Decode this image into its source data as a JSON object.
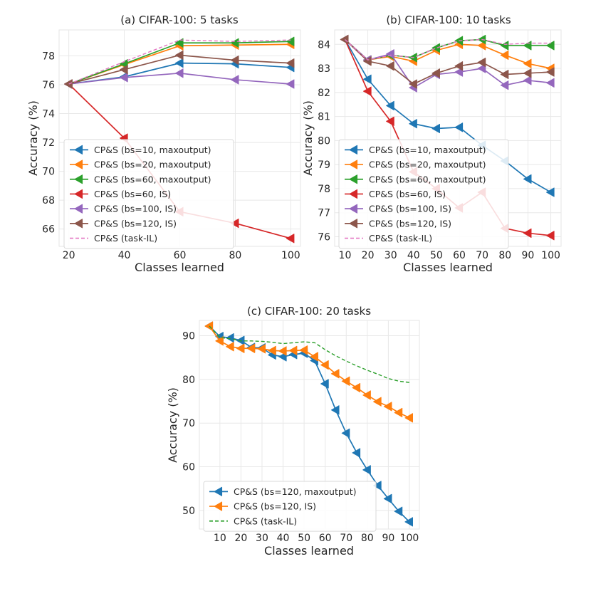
{
  "chart_data": [
    {
      "id": "a",
      "type": "line",
      "title": "(a) CIFAR-100: 5 tasks",
      "xlabel": "Classes learned",
      "ylabel": "Accuracy (%)",
      "xlim": [
        16.5,
        103.5
      ],
      "ylim": [
        64.8,
        79.8
      ],
      "xticks": [
        20,
        40,
        60,
        80,
        100
      ],
      "yticks": [
        66,
        68,
        70,
        72,
        74,
        76,
        78
      ],
      "grid": true,
      "legend_position": "lower-left",
      "series": [
        {
          "name": "CP&S (bs=10, maxoutput)",
          "color": "#1f77b4",
          "style": "solid",
          "marker": "triangle-left",
          "x": [
            20,
            40,
            60,
            80,
            100
          ],
          "y": [
            76.05,
            76.55,
            77.5,
            77.45,
            77.2
          ]
        },
        {
          "name": "CP&S (bs=20, maxoutput)",
          "color": "#ff7f0e",
          "style": "solid",
          "marker": "triangle-left",
          "x": [
            20,
            40,
            60,
            80,
            100
          ],
          "y": [
            76.05,
            77.4,
            78.7,
            78.75,
            78.8
          ]
        },
        {
          "name": "CP&S (bs=60, maxoutput)",
          "color": "#2ca02c",
          "style": "solid",
          "marker": "triangle-left",
          "x": [
            20,
            40,
            60,
            80,
            100
          ],
          "y": [
            76.05,
            77.45,
            78.9,
            78.9,
            79.0
          ]
        },
        {
          "name": "CP&S (bs=60, IS)",
          "color": "#d62728",
          "style": "solid",
          "marker": "triangle-left",
          "x": [
            20,
            40,
            60,
            80,
            100
          ],
          "y": [
            76.05,
            72.3,
            67.2,
            66.4,
            65.35
          ]
        },
        {
          "name": "CP&S (bs=100, IS)",
          "color": "#9467bd",
          "style": "solid",
          "marker": "triangle-left",
          "x": [
            20,
            40,
            60,
            80,
            100
          ],
          "y": [
            76.05,
            76.5,
            76.8,
            76.35,
            76.05
          ]
        },
        {
          "name": "CP&S (bs=120, IS)",
          "color": "#8c564b",
          "style": "solid",
          "marker": "triangle-left",
          "x": [
            20,
            40,
            60,
            80,
            100
          ],
          "y": [
            76.05,
            77.05,
            78.05,
            77.7,
            77.5
          ]
        },
        {
          "name": "CP&S (task-IL)",
          "color": "#e377c2",
          "style": "dashed",
          "marker": "none",
          "x": [
            20,
            40,
            60,
            80,
            100
          ],
          "y": [
            76.05,
            77.6,
            79.1,
            79.0,
            79.1
          ]
        }
      ]
    },
    {
      "id": "b",
      "type": "line",
      "title": "(b) CIFAR-100: 10 tasks",
      "xlabel": "Classes learned",
      "ylabel": "Accuracy (%)",
      "xlim": [
        5.5,
        104.5
      ],
      "ylim": [
        75.6,
        84.6
      ],
      "xticks": [
        10,
        20,
        30,
        40,
        50,
        60,
        70,
        80,
        90,
        100
      ],
      "yticks": [
        76,
        77,
        78,
        79,
        80,
        81,
        82,
        83,
        84
      ],
      "grid": true,
      "legend_position": "lower-left",
      "series": [
        {
          "name": "CP&S (bs=10, maxoutput)",
          "color": "#1f77b4",
          "style": "solid",
          "marker": "triangle-left",
          "x": [
            10,
            20,
            30,
            40,
            50,
            60,
            70,
            80,
            90,
            100
          ],
          "y": [
            84.2,
            82.55,
            81.45,
            80.7,
            80.5,
            80.55,
            79.8,
            79.15,
            78.4,
            77.85
          ]
        },
        {
          "name": "CP&S (bs=20, maxoutput)",
          "color": "#ff7f0e",
          "style": "solid",
          "marker": "triangle-left",
          "x": [
            10,
            20,
            30,
            40,
            50,
            60,
            70,
            80,
            90,
            100
          ],
          "y": [
            84.2,
            83.35,
            83.5,
            83.3,
            83.75,
            84.0,
            83.95,
            83.55,
            83.2,
            83.0
          ]
        },
        {
          "name": "CP&S (bs=60, maxoutput)",
          "color": "#2ca02c",
          "style": "solid",
          "marker": "triangle-left",
          "x": [
            10,
            20,
            30,
            40,
            50,
            60,
            70,
            80,
            90,
            100
          ],
          "y": [
            84.2,
            83.35,
            83.55,
            83.45,
            83.85,
            84.15,
            84.2,
            83.95,
            83.95,
            83.95
          ]
        },
        {
          "name": "CP&S (bs=60, IS)",
          "color": "#d62728",
          "style": "solid",
          "marker": "triangle-left",
          "x": [
            10,
            20,
            30,
            40,
            50,
            60,
            70,
            80,
            90,
            100
          ],
          "y": [
            84.2,
            82.05,
            80.8,
            78.7,
            78.0,
            77.2,
            77.85,
            76.35,
            76.15,
            76.05
          ]
        },
        {
          "name": "CP&S (bs=100, IS)",
          "color": "#9467bd",
          "style": "solid",
          "marker": "triangle-left",
          "x": [
            10,
            20,
            30,
            40,
            50,
            60,
            70,
            80,
            90,
            100
          ],
          "y": [
            84.2,
            83.35,
            83.6,
            82.2,
            82.75,
            82.85,
            83.0,
            82.3,
            82.5,
            82.4
          ]
        },
        {
          "name": "CP&S (bs=120, IS)",
          "color": "#8c564b",
          "style": "solid",
          "marker": "triangle-left",
          "x": [
            10,
            20,
            30,
            40,
            50,
            60,
            70,
            80,
            90,
            100
          ],
          "y": [
            84.2,
            83.3,
            83.1,
            82.35,
            82.8,
            83.1,
            83.25,
            82.75,
            82.8,
            82.85
          ]
        },
        {
          "name": "CP&S (task-IL)",
          "color": "#e377c2",
          "style": "dashed",
          "marker": "none",
          "x": [
            10,
            20,
            30,
            40,
            50,
            60,
            70,
            80,
            90,
            100
          ],
          "y": [
            84.2,
            83.35,
            83.55,
            83.45,
            83.85,
            84.15,
            84.2,
            84.0,
            84.05,
            84.05
          ]
        }
      ]
    },
    {
      "id": "c",
      "type": "line",
      "title": "(c) CIFAR-100: 20 tasks",
      "xlabel": "Classes learned",
      "ylabel": "Accuracy (%)",
      "xlim": [
        0.25,
        104.75
      ],
      "ylim": [
        45.75,
        93.5
      ],
      "xticks": [
        10,
        20,
        30,
        40,
        50,
        60,
        70,
        80,
        90,
        100
      ],
      "yticks": [
        50,
        60,
        70,
        80,
        90
      ],
      "grid": true,
      "legend_position": "lower-left",
      "series": [
        {
          "name": "CP&S (bs=120, maxoutput)",
          "color": "#1f77b4",
          "style": "solid",
          "marker": "triangle-left",
          "x": [
            5,
            10,
            15,
            20,
            25,
            30,
            35,
            40,
            45,
            50,
            55,
            60,
            65,
            70,
            75,
            80,
            85,
            90,
            95,
            100
          ],
          "y": [
            92.2,
            89.8,
            89.5,
            88.9,
            87.3,
            87.2,
            85.6,
            85.2,
            85.7,
            86.0,
            84.3,
            79.0,
            73.0,
            67.7,
            63.2,
            59.3,
            55.7,
            52.7,
            49.8,
            47.4
          ]
        },
        {
          "name": "CP&S (bs=120, IS)",
          "color": "#ff7f0e",
          "style": "solid",
          "marker": "triangle-left",
          "x": [
            5,
            10,
            15,
            20,
            25,
            30,
            35,
            40,
            45,
            50,
            55,
            60,
            65,
            70,
            75,
            80,
            85,
            90,
            95,
            100
          ],
          "y": [
            92.2,
            88.8,
            87.5,
            87.1,
            87.1,
            87.0,
            86.6,
            86.5,
            86.6,
            86.7,
            85.2,
            83.3,
            81.3,
            79.6,
            78.1,
            76.4,
            74.9,
            73.8,
            72.4,
            71.2
          ]
        },
        {
          "name": "CP&S (task-IL)",
          "color": "#2ca02c",
          "style": "dashed",
          "marker": "none",
          "x": [
            5,
            10,
            15,
            20,
            25,
            30,
            35,
            40,
            45,
            50,
            55,
            60,
            65,
            70,
            75,
            80,
            85,
            90,
            95,
            100
          ],
          "y": [
            92.2,
            89.6,
            89.3,
            88.8,
            88.8,
            88.7,
            88.5,
            88.2,
            88.4,
            88.6,
            88.4,
            86.8,
            85.4,
            84.2,
            83.1,
            82.1,
            81.2,
            80.2,
            79.6,
            79.3
          ]
        }
      ]
    }
  ]
}
